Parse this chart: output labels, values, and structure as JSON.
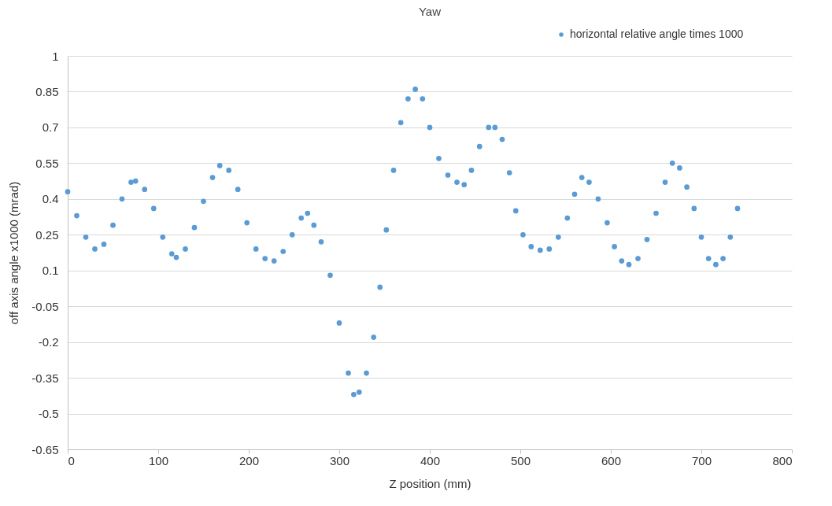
{
  "chart_data": {
    "type": "scatter",
    "title": "Yaw",
    "xlabel": "Z position (mm)",
    "ylabel": "off axis angle x1000  (mrad)",
    "x": [
      0,
      10,
      20,
      30,
      40,
      50,
      60,
      70,
      75,
      85,
      95,
      105,
      115,
      120,
      130,
      140,
      150,
      160,
      168,
      178,
      188,
      198,
      208,
      218,
      228,
      238,
      248,
      258,
      265,
      272,
      280,
      290,
      300,
      310,
      316,
      322,
      330,
      338,
      345,
      352,
      360,
      368,
      376,
      384,
      392,
      400,
      410,
      420,
      430,
      438,
      446,
      455,
      465,
      472,
      480,
      488,
      495,
      503,
      512,
      522,
      532,
      542,
      552,
      560,
      568,
      576,
      586,
      596,
      604,
      612,
      620,
      630,
      640,
      650,
      660,
      668,
      676,
      684,
      692,
      700,
      708,
      716,
      724,
      732,
      740
    ],
    "series": [
      {
        "name": "horizontal relative angle times 1000",
        "color": "#5b9bd5",
        "values": [
          0.43,
          0.33,
          0.24,
          0.19,
          0.21,
          0.29,
          0.4,
          0.47,
          0.475,
          0.44,
          0.36,
          0.24,
          0.17,
          0.155,
          0.19,
          0.28,
          0.39,
          0.49,
          0.54,
          0.52,
          0.44,
          0.3,
          0.19,
          0.15,
          0.14,
          0.18,
          0.25,
          0.32,
          0.34,
          0.29,
          0.22,
          0.08,
          -0.12,
          -0.33,
          -0.42,
          -0.41,
          -0.33,
          -0.18,
          0.03,
          0.27,
          0.52,
          0.72,
          0.82,
          0.86,
          0.82,
          0.7,
          0.57,
          0.5,
          0.47,
          0.46,
          0.52,
          0.62,
          0.7,
          0.7,
          0.65,
          0.51,
          0.35,
          0.25,
          0.2,
          0.185,
          0.19,
          0.24,
          0.32,
          0.42,
          0.49,
          0.47,
          0.4,
          0.3,
          0.2,
          0.14,
          0.125,
          0.15,
          0.23,
          0.34,
          0.47,
          0.55,
          0.53,
          0.45,
          0.36,
          0.24,
          0.15,
          0.125,
          0.15,
          0.24,
          0.36
        ]
      }
    ],
    "xlim": [
      0,
      800
    ],
    "xticks": [
      0,
      100,
      200,
      300,
      400,
      500,
      600,
      700,
      800
    ],
    "ylim": [
      -0.65,
      1
    ],
    "yticks": [
      -0.65,
      -0.5,
      -0.35,
      -0.2,
      -0.05,
      0.1,
      0.25,
      0.4,
      0.55,
      0.7,
      0.85,
      1
    ],
    "grid": "y",
    "legend": "top right",
    "marker": "circle"
  }
}
